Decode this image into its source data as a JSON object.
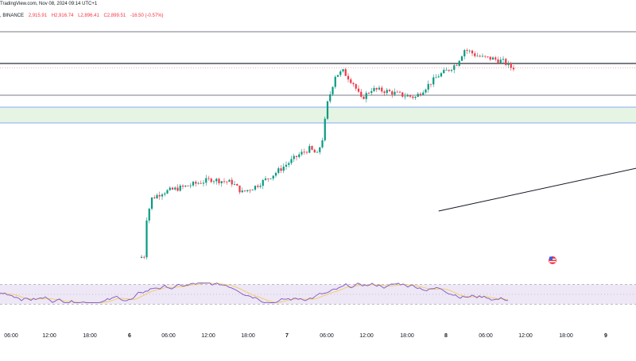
{
  "header": {
    "line1": "TradingView.com, Nov 08, 2024 09:14 UTC+1",
    "symbol": ", BINANCE",
    "open": "2,915.91",
    "high": "H2,916.74",
    "low": "L2,896.41",
    "close": "C2,899.51",
    "change": "-16.50 (-0.57%)"
  },
  "colors": {
    "up": "#089981",
    "down": "#f23645",
    "level": "#787b86",
    "zone_fill": "#e6f4e4",
    "zone_edge": "#2962ff",
    "trend": "#131722",
    "rsi": "#7e57c2",
    "rsi_ma": "#f7c948",
    "rsi_band": "#ede7f6"
  },
  "chart_data": {
    "type": "candlestick",
    "price_axis_visible": false,
    "x_ticks": [
      "06:00",
      "12:00",
      "18:00",
      "6",
      "06:00",
      "12:00",
      "18:00",
      "7",
      "06:00",
      "12:00",
      "18:00",
      "8",
      "06:00",
      "12:00",
      "18:00",
      "9"
    ],
    "y_range": [
      2390,
      3010
    ],
    "levels": [
      2990,
      2910,
      2830
    ],
    "support_zone": [
      2760,
      2800
    ],
    "trendline": {
      "start": [
        145,
        2538
      ],
      "end": [
        410,
        2912
      ]
    },
    "current_price": 2899.51,
    "rsi": {
      "range": [
        0,
        100
      ],
      "band": [
        30,
        70
      ],
      "midline": 50
    }
  }
}
